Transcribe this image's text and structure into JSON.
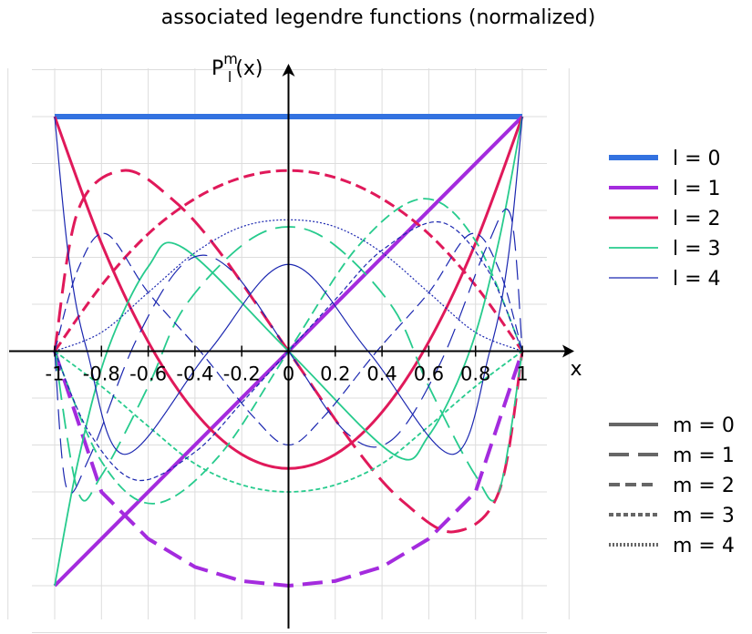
{
  "chart_data": {
    "type": "line",
    "title": "associated legendre functions (normalized)",
    "xlabel": "x",
    "ylabel": {
      "base": "P",
      "sup": "m",
      "sub": "l",
      "arg": "(x)"
    },
    "xlim": [
      -1,
      1
    ],
    "ylim": [
      -1,
      1
    ],
    "grid": true,
    "x_ticks": [
      "-1",
      "-0.8",
      "-0.6",
      "-0.4",
      "-0.2",
      "0",
      "0.2",
      "0.4",
      "0.6",
      "0.8",
      "1"
    ],
    "legend_position": "right",
    "legend_l": [
      {
        "label": "l = 0",
        "color": "#3372e0",
        "l": 0
      },
      {
        "label": "l = 1",
        "color": "#a42bde",
        "l": 1
      },
      {
        "label": "l = 2",
        "color": "#e0195a",
        "l": 2
      },
      {
        "label": "l = 3",
        "color": "#27cb8d",
        "l": 3
      },
      {
        "label": "l = 4",
        "color": "#1b27b0",
        "l": 4
      }
    ],
    "legend_m": [
      {
        "label": "m = 0",
        "dash": "solid",
        "color": "#666666"
      },
      {
        "label": "m = 1",
        "dash": "long-dash",
        "color": "#666666"
      },
      {
        "label": "m = 2",
        "dash": "dash",
        "color": "#666666"
      },
      {
        "label": "m = 3",
        "dash": "short-dash",
        "color": "#666666"
      },
      {
        "label": "m = 4",
        "dash": "dotted",
        "color": "#666666"
      }
    ],
    "series": [
      {
        "l": 0,
        "m": 0,
        "color": "#3372e0",
        "x": [
          -1,
          -0.5,
          0,
          0.5,
          1
        ],
        "y": [
          1,
          1,
          1,
          1,
          1
        ]
      },
      {
        "l": 1,
        "m": 0,
        "color": "#a42bde",
        "x": [
          -1,
          -0.5,
          0,
          0.5,
          1
        ],
        "y": [
          -1,
          -0.5,
          0,
          0.5,
          1
        ]
      },
      {
        "l": 1,
        "m": 1,
        "color": "#a42bde",
        "x": [
          -1,
          -0.8,
          -0.6,
          -0.4,
          -0.2,
          0,
          0.2,
          0.4,
          0.6,
          0.8,
          1
        ],
        "y": [
          0,
          -0.6,
          -0.8,
          -0.92,
          -0.98,
          -1,
          -0.98,
          -0.92,
          -0.8,
          -0.6,
          0
        ]
      },
      {
        "l": 2,
        "m": 0,
        "color": "#e0195a",
        "x": [
          -1,
          -0.8,
          -0.6,
          -0.4,
          -0.2,
          0,
          0.2,
          0.4,
          0.6,
          0.8,
          1
        ],
        "y": [
          1,
          0.46,
          0.04,
          -0.26,
          -0.44,
          -0.5,
          -0.44,
          -0.26,
          0.04,
          0.46,
          1
        ]
      },
      {
        "l": 2,
        "m": 1,
        "color": "#e0195a",
        "x": [
          -1,
          -0.9,
          -0.707,
          -0.5,
          -0.3,
          0,
          0.3,
          0.5,
          0.707,
          0.9,
          1
        ],
        "y": [
          0,
          0.6,
          0.77,
          0.65,
          0.43,
          0,
          -0.43,
          -0.65,
          -0.77,
          -0.6,
          0
        ]
      },
      {
        "l": 2,
        "m": 2,
        "color": "#e0195a",
        "x": [
          -1,
          -0.8,
          -0.6,
          -0.4,
          -0.2,
          0,
          0.2,
          0.4,
          0.6,
          0.8,
          1
        ],
        "y": [
          0,
          0.28,
          0.5,
          0.65,
          0.74,
          0.77,
          0.74,
          0.65,
          0.5,
          0.28,
          0
        ]
      },
      {
        "l": 3,
        "m": 0,
        "color": "#27cb8d",
        "x": [
          -1,
          -0.9,
          -0.775,
          -0.6,
          -0.45,
          0,
          0.45,
          0.6,
          0.775,
          0.9,
          1
        ],
        "y": [
          -1,
          -0.47,
          0,
          0.36,
          0.44,
          0,
          -0.44,
          -0.36,
          0,
          0.47,
          1
        ]
      },
      {
        "l": 3,
        "m": 1,
        "color": "#27cb8d",
        "x": [
          -1,
          -0.9,
          -0.8,
          -0.6,
          -0.45,
          -0.2,
          0,
          0.2,
          0.45,
          0.6,
          0.8,
          0.9,
          1
        ],
        "y": [
          0,
          -0.6,
          -0.53,
          -0.15,
          0.18,
          0.45,
          0.53,
          0.45,
          0.18,
          -0.15,
          -0.53,
          -0.6,
          0
        ]
      },
      {
        "l": 3,
        "m": 2,
        "color": "#27cb8d",
        "x": [
          -1,
          -0.8,
          -0.577,
          -0.3,
          0,
          0.3,
          0.577,
          0.8,
          1
        ],
        "y": [
          0,
          -0.47,
          -0.65,
          -0.45,
          0,
          0.45,
          0.65,
          0.47,
          0
        ]
      },
      {
        "l": 3,
        "m": 3,
        "color": "#27cb8d",
        "x": [
          -1,
          -0.8,
          -0.6,
          -0.4,
          -0.2,
          0,
          0.2,
          0.4,
          0.6,
          0.8,
          1
        ],
        "y": [
          0,
          -0.15,
          -0.32,
          -0.48,
          -0.57,
          -0.6,
          -0.57,
          -0.48,
          -0.32,
          -0.15,
          0
        ]
      },
      {
        "l": 4,
        "m": 0,
        "color": "#1b27b0",
        "x": [
          -1,
          -0.94,
          -0.861,
          -0.7,
          -0.34,
          0,
          0.34,
          0.7,
          0.861,
          0.94,
          1
        ],
        "y": [
          1,
          0.4,
          0,
          -0.44,
          0,
          0.37,
          0,
          -0.44,
          0,
          0.4,
          1
        ]
      },
      {
        "l": 4,
        "m": 1,
        "color": "#1b27b0",
        "x": [
          -1,
          -0.95,
          -0.85,
          -0.65,
          -0.44,
          -0.25,
          0,
          0.25,
          0.44,
          0.65,
          0.85,
          0.95,
          1
        ],
        "y": [
          0,
          -0.58,
          -0.45,
          0.05,
          0.38,
          0.35,
          0,
          -0.35,
          -0.38,
          -0.05,
          0.45,
          0.58,
          0
        ]
      },
      {
        "l": 4,
        "m": 2,
        "color": "#1b27b0",
        "x": [
          -1,
          -0.9,
          -0.78,
          -0.6,
          -0.378,
          -0.15,
          0,
          0.15,
          0.378,
          0.6,
          0.78,
          0.9,
          1
        ],
        "y": [
          0,
          0.35,
          0.5,
          0.25,
          0,
          -0.28,
          -0.4,
          -0.28,
          0,
          0.25,
          0.5,
          0.35,
          0
        ]
      },
      {
        "l": 4,
        "m": 3,
        "color": "#1b27b0",
        "x": [
          -1,
          -0.85,
          -0.65,
          -0.4,
          -0.2,
          0,
          0.2,
          0.4,
          0.65,
          0.85,
          1
        ],
        "y": [
          0,
          -0.35,
          -0.55,
          -0.43,
          -0.22,
          0,
          0.22,
          0.43,
          0.55,
          0.35,
          0
        ]
      },
      {
        "l": 4,
        "m": 4,
        "color": "#1b27b0",
        "x": [
          -1,
          -0.8,
          -0.6,
          -0.4,
          -0.2,
          0,
          0.2,
          0.4,
          0.6,
          0.8,
          1
        ],
        "y": [
          0,
          0.08,
          0.25,
          0.42,
          0.53,
          0.56,
          0.53,
          0.42,
          0.25,
          0.08,
          0
        ]
      }
    ]
  }
}
